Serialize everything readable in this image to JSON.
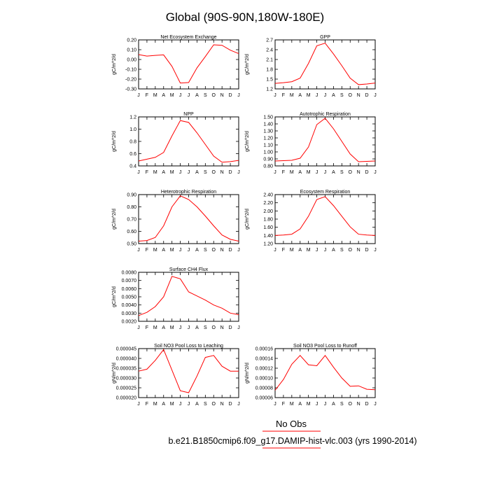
{
  "figure": {
    "title": "Global (90S-90N,180W-180E)",
    "legend_label": "No Obs",
    "case_label": "b.e21.B1850cmip6.f09_g17.DAMIP-hist-vlc.003 (yrs 1990-2014)",
    "line_color": "#ff0000"
  },
  "chart_data": [
    {
      "type": "line",
      "title": "Net Ecosystem Exchange",
      "ylabel": "gC/m^2/d",
      "xlabel": "",
      "x": [
        "J",
        "F",
        "M",
        "A",
        "M",
        "J",
        "J",
        "A",
        "S",
        "O",
        "N",
        "D",
        "J"
      ],
      "values": [
        0.05,
        0.035,
        0.042,
        0.047,
        -0.07,
        -0.24,
        -0.235,
        -0.085,
        0.03,
        0.15,
        0.145,
        0.095,
        0.06
      ],
      "ylim": [
        -0.3,
        0.2
      ],
      "yticks": [
        -0.3,
        -0.2,
        -0.1,
        0.0,
        0.1,
        0.2
      ],
      "ytick_labels": [
        "-0.30",
        "-0.20",
        "-0.10",
        "0.00",
        "0.10",
        "0.20"
      ]
    },
    {
      "type": "line",
      "title": "GPP",
      "ylabel": "gC/m^2/d",
      "xlabel": "",
      "x": [
        "J",
        "F",
        "M",
        "A",
        "M",
        "J",
        "J",
        "A",
        "S",
        "O",
        "N",
        "D",
        "J"
      ],
      "values": [
        1.37,
        1.39,
        1.42,
        1.53,
        1.98,
        2.52,
        2.6,
        2.27,
        1.91,
        1.53,
        1.33,
        1.35,
        1.38
      ],
      "ylim": [
        1.2,
        2.7
      ],
      "yticks": [
        1.2,
        1.5,
        1.8,
        2.1,
        2.4,
        2.7
      ],
      "ytick_labels": [
        "1.2",
        "1.5",
        "1.8",
        "2.1",
        "2.4",
        "2.7"
      ]
    },
    {
      "type": "line",
      "title": "NPP",
      "ylabel": "gC/m^2/d",
      "xlabel": "",
      "x": [
        "J",
        "F",
        "M",
        "A",
        "M",
        "J",
        "J",
        "A",
        "S",
        "O",
        "N",
        "D",
        "J"
      ],
      "values": [
        0.48,
        0.51,
        0.54,
        0.62,
        0.89,
        1.14,
        1.11,
        0.94,
        0.75,
        0.56,
        0.46,
        0.47,
        0.49
      ],
      "ylim": [
        0.4,
        1.2
      ],
      "yticks": [
        0.4,
        0.6,
        0.8,
        1.0,
        1.2
      ],
      "ytick_labels": [
        "0.4",
        "0.6",
        "0.8",
        "1.0",
        "1.2"
      ]
    },
    {
      "type": "line",
      "title": "Autotrophic Respiration",
      "ylabel": "gC/m^2/d",
      "xlabel": "",
      "x": [
        "J",
        "F",
        "M",
        "A",
        "M",
        "J",
        "J",
        "A",
        "S",
        "O",
        "N",
        "D",
        "J"
      ],
      "values": [
        0.87,
        0.875,
        0.88,
        0.91,
        1.07,
        1.39,
        1.48,
        1.33,
        1.15,
        0.97,
        0.86,
        0.865,
        0.87
      ],
      "ylim": [
        0.8,
        1.5
      ],
      "yticks": [
        0.8,
        0.9,
        1.0,
        1.1,
        1.2,
        1.3,
        1.4,
        1.5
      ],
      "ytick_labels": [
        "0.80",
        "0.90",
        "1.00",
        "1.10",
        "1.20",
        "1.30",
        "1.40",
        "1.50"
      ]
    },
    {
      "type": "line",
      "title": "Heterotrophic Respiration",
      "ylabel": "gC/m^2/d",
      "xlabel": "",
      "x": [
        "J",
        "F",
        "M",
        "A",
        "M",
        "J",
        "J",
        "A",
        "S",
        "O",
        "N",
        "D",
        "J"
      ],
      "values": [
        0.52,
        0.525,
        0.55,
        0.645,
        0.8,
        0.89,
        0.86,
        0.8,
        0.725,
        0.645,
        0.57,
        0.535,
        0.52
      ],
      "ylim": [
        0.5,
        0.9
      ],
      "yticks": [
        0.5,
        0.6,
        0.7,
        0.8,
        0.9
      ],
      "ytick_labels": [
        "0.50",
        "0.60",
        "0.70",
        "0.80",
        "0.90"
      ]
    },
    {
      "type": "line",
      "title": "Ecosystem Respiration",
      "ylabel": "gC/m^2/d",
      "xlabel": "",
      "x": [
        "J",
        "F",
        "M",
        "A",
        "M",
        "J",
        "J",
        "A",
        "S",
        "O",
        "N",
        "D",
        "J"
      ],
      "values": [
        1.4,
        1.41,
        1.43,
        1.56,
        1.87,
        2.28,
        2.35,
        2.13,
        1.87,
        1.61,
        1.43,
        1.41,
        1.4
      ],
      "ylim": [
        1.2,
        2.4
      ],
      "yticks": [
        1.2,
        1.4,
        1.6,
        1.8,
        2.0,
        2.2,
        2.4
      ],
      "ytick_labels": [
        "1.20",
        "1.40",
        "1.60",
        "1.80",
        "2.00",
        "2.20",
        "2.40"
      ]
    },
    {
      "type": "line",
      "title": "Surface CH4 Flux",
      "ylabel": "gC/m^2/d",
      "xlabel": "",
      "x": [
        "J",
        "F",
        "M",
        "A",
        "M",
        "J",
        "J",
        "A",
        "S",
        "O",
        "N",
        "D",
        "J"
      ],
      "values": [
        0.0027,
        0.0031,
        0.0038,
        0.005,
        0.0075,
        0.0072,
        0.0056,
        0.0051,
        0.0046,
        0.004,
        0.0036,
        0.003,
        0.0028
      ],
      "ylim": [
        0.002,
        0.008
      ],
      "yticks": [
        0.002,
        0.003,
        0.004,
        0.005,
        0.006,
        0.007,
        0.008
      ],
      "ytick_labels": [
        "0.0020",
        "0.0030",
        "0.0040",
        "0.0050",
        "0.0060",
        "0.0070",
        "0.0080"
      ]
    },
    {
      "type": "line",
      "title": "Soil NO3 Pool Loss to Leaching",
      "ylabel": "gN/m^2/d",
      "xlabel": "",
      "x": [
        "J",
        "F",
        "M",
        "A",
        "M",
        "J",
        "J",
        "A",
        "S",
        "O",
        "N",
        "D",
        "J"
      ],
      "values": [
        3.35e-05,
        3.45e-05,
        3.9e-05,
        4.45e-05,
        3.4e-05,
        2.35e-05,
        2.25e-05,
        3.1e-05,
        4.05e-05,
        4.15e-05,
        3.6e-05,
        3.35e-05,
        3.35e-05
      ],
      "ylim": [
        2e-05,
        4.5e-05
      ],
      "yticks": [
        2e-05,
        2.5e-05,
        3e-05,
        3.5e-05,
        4e-05,
        4.5e-05
      ],
      "ytick_labels": [
        "0.000020",
        "0.000025",
        "0.000030",
        "0.000035",
        "0.000040",
        "0.000045"
      ]
    },
    {
      "type": "line",
      "title": "Soil NO3 Pool Loss to Runoff",
      "ylabel": "gN/m^2/d",
      "xlabel": "",
      "x": [
        "J",
        "F",
        "M",
        "A",
        "M",
        "J",
        "J",
        "A",
        "S",
        "O",
        "N",
        "D",
        "J"
      ],
      "values": [
        7.5e-05,
        9.7e-05,
        0.000128,
        0.000146,
        0.000127,
        0.000125,
        0.000146,
        0.000122,
        0.0001,
        8.3e-05,
        8.4e-05,
        7.7e-05,
        7.6e-05
      ],
      "ylim": [
        6e-05,
        0.00016
      ],
      "yticks": [
        6e-05,
        8e-05,
        0.0001,
        0.00012,
        0.00014,
        0.00016
      ],
      "ytick_labels": [
        "0.00006",
        "0.00008",
        "0.00010",
        "0.00012",
        "0.00014",
        "0.00016"
      ]
    }
  ]
}
